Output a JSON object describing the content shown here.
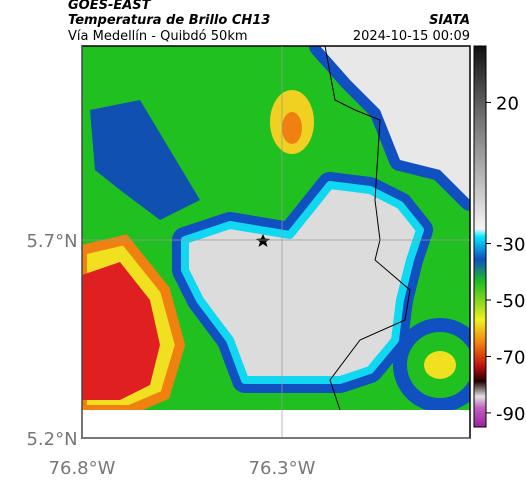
{
  "header": {
    "title": "GOES-EAST",
    "subtitle": "Temperatura de Brillo CH13",
    "region": "Vía Medellín - Quibdó 50km",
    "source": "SIATA",
    "timestamp": "2024-10-15 00:09"
  },
  "map": {
    "xlim": [
      -76.8,
      -75.83
    ],
    "ylim": [
      5.2,
      6.19
    ],
    "xticks": [
      {
        "value": -76.8,
        "label": "76.8°W"
      },
      {
        "value": -76.3,
        "label": "76.3°W"
      }
    ],
    "yticks": [
      {
        "value": 5.7,
        "label": "5.7°N"
      },
      {
        "value": 5.2,
        "label": "5.2°N"
      }
    ],
    "grid": true
  },
  "colorbar": {
    "lim": [
      -95,
      40
    ],
    "ticks": [
      20,
      -30,
      -50,
      -70,
      -90
    ]
  }
}
